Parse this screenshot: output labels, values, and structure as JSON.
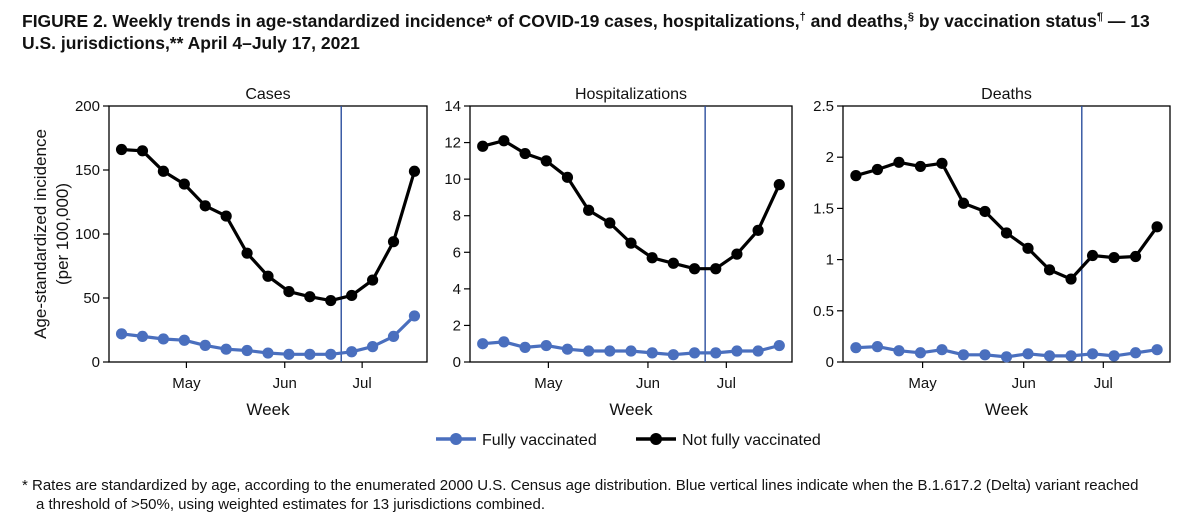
{
  "figure": {
    "title_main": "FIGURE 2. Weekly trends in age-standardized incidence* of COVID-19 cases, hospitalizations,",
    "title_dagger": "†",
    "title_mid1": " and deaths,",
    "title_section": "§",
    "title_mid2": " by vaccination status",
    "title_pilcrow": "¶",
    "title_end": " — 13 U.S. jurisdictions,** April 4–July 17, 2021"
  },
  "footnote": {
    "line1": "* Rates are standardized by age, according to the enumerated 2000 U.S. Census age distribution. Blue vertical lines indicate when the B.1.617.2 (Delta) variant reached",
    "line2": "a threshold of >50%, using weighted estimates for 13 jurisdictions combined."
  },
  "colors": {
    "fully": "#4a6fbe",
    "not_fully": "#000000",
    "delta_line": "#2c4f9e"
  },
  "legend": {
    "fully_label": "Fully vaccinated",
    "not_fully_label": "Not fully vaccinated"
  },
  "chart_data": [
    {
      "type": "line",
      "title": "Cases",
      "xlabel": "Week",
      "ylabel_line1": "Age-standardized incidence",
      "ylabel_line2": "(per 100,000)",
      "ylim": [
        0,
        200
      ],
      "yticks": [
        0,
        50,
        100,
        150,
        200
      ],
      "ytick_labels": [
        "0",
        "50",
        "100",
        "150",
        "200"
      ],
      "x": [
        1,
        2,
        3,
        4,
        5,
        6,
        7,
        8,
        9,
        10,
        11,
        12,
        13,
        14,
        15
      ],
      "xticks": [
        {
          "x": 4.1,
          "label": "May"
        },
        {
          "x": 8.8,
          "label": "Jun"
        },
        {
          "x": 12.5,
          "label": "Jul"
        }
      ],
      "delta_x": 11.5,
      "series": [
        {
          "name": "Fully vaccinated",
          "values": [
            22,
            20,
            18,
            17,
            13,
            10,
            9,
            7,
            6,
            6,
            6,
            8,
            12,
            20,
            36
          ]
        },
        {
          "name": "Not fully vaccinated",
          "values": [
            166,
            165,
            149,
            139,
            122,
            114,
            85,
            67,
            55,
            51,
            48,
            52,
            64,
            94,
            149
          ]
        }
      ]
    },
    {
      "type": "line",
      "title": "Hospitalizations",
      "xlabel": "Week",
      "ylim": [
        0,
        14
      ],
      "yticks": [
        0,
        2,
        4,
        6,
        8,
        10,
        12,
        14
      ],
      "ytick_labels": [
        "0",
        "2",
        "4",
        "6",
        "8",
        "10",
        "12",
        "14"
      ],
      "x": [
        1,
        2,
        3,
        4,
        5,
        6,
        7,
        8,
        9,
        10,
        11,
        12,
        13,
        14,
        15
      ],
      "xticks": [
        {
          "x": 4.1,
          "label": "May"
        },
        {
          "x": 8.8,
          "label": "Jun"
        },
        {
          "x": 12.5,
          "label": "Jul"
        }
      ],
      "delta_x": 11.5,
      "series": [
        {
          "name": "Fully vaccinated",
          "values": [
            1.0,
            1.1,
            0.8,
            0.9,
            0.7,
            0.6,
            0.6,
            0.6,
            0.5,
            0.4,
            0.5,
            0.5,
            0.6,
            0.6,
            0.9
          ]
        },
        {
          "name": "Not fully vaccinated",
          "values": [
            11.8,
            12.1,
            11.4,
            11.0,
            10.1,
            8.3,
            7.6,
            6.5,
            5.7,
            5.4,
            5.1,
            5.1,
            5.9,
            7.2,
            9.7
          ]
        }
      ]
    },
    {
      "type": "line",
      "title": "Deaths",
      "xlabel": "Week",
      "ylim": [
        0,
        2.5
      ],
      "yticks": [
        0,
        0.5,
        1,
        1.5,
        2,
        2.5
      ],
      "ytick_labels": [
        "0",
        "0.5",
        "1",
        "1.5",
        "2",
        "2.5"
      ],
      "x": [
        1,
        2,
        3,
        4,
        5,
        6,
        7,
        8,
        9,
        10,
        11,
        12,
        13,
        14,
        15
      ],
      "xticks": [
        {
          "x": 4.1,
          "label": "May"
        },
        {
          "x": 8.8,
          "label": "Jun"
        },
        {
          "x": 12.5,
          "label": "Jul"
        }
      ],
      "delta_x": 11.5,
      "series": [
        {
          "name": "Fully vaccinated",
          "values": [
            0.14,
            0.15,
            0.11,
            0.09,
            0.12,
            0.07,
            0.07,
            0.05,
            0.08,
            0.06,
            0.06,
            0.08,
            0.06,
            0.09,
            0.12
          ]
        },
        {
          "name": "Not fully vaccinated",
          "values": [
            1.82,
            1.88,
            1.95,
            1.91,
            1.94,
            1.55,
            1.47,
            1.26,
            1.11,
            0.9,
            0.81,
            1.04,
            1.02,
            1.03,
            1.32
          ]
        }
      ]
    }
  ]
}
